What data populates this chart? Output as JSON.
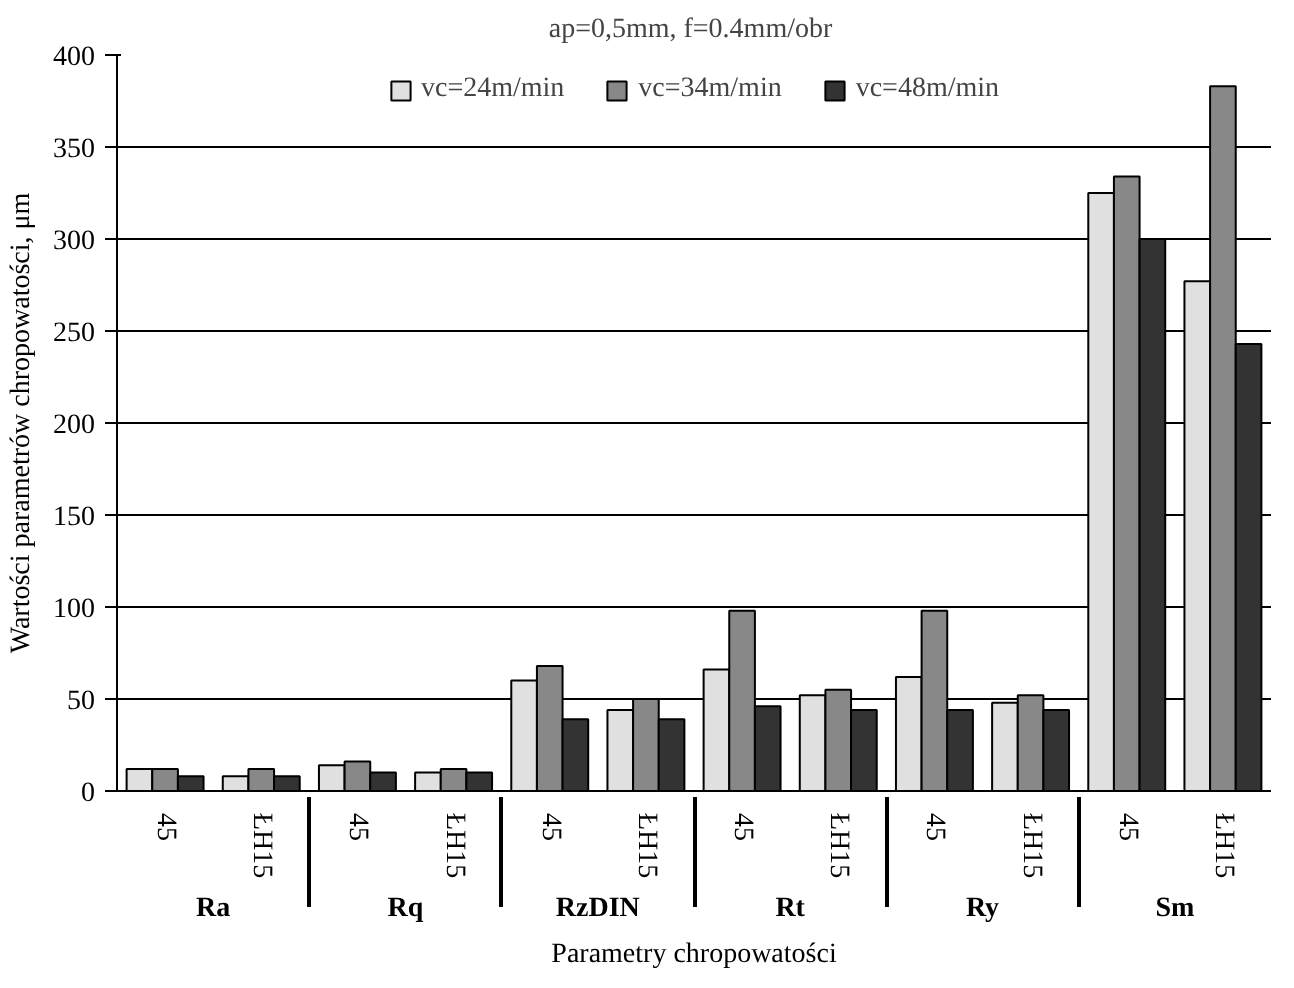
{
  "chart_data": {
    "type": "bar",
    "subtitle": "ap=0,5mm,  f=0.4mm/obr",
    "xlabel": "Parametry chropowatości",
    "ylabel": "Wartości parametrów chropowatości, μm",
    "categories": [
      "45",
      "ŁH15",
      "45",
      "ŁH15",
      "45",
      "ŁH15",
      "45",
      "ŁH15",
      "45",
      "ŁH15",
      "45",
      "ŁH15"
    ],
    "annotations": [
      "Ra",
      "Rq",
      "RzDIN",
      "Rt",
      "Ry",
      "Sm"
    ],
    "series": [
      {
        "name": "vc=24m/min",
        "color": "#e0e0e0",
        "values": [
          12,
          8,
          14,
          10,
          60,
          44,
          66,
          52,
          62,
          48,
          325,
          277
        ]
      },
      {
        "name": "vc=34m/min",
        "color": "#888888",
        "values": [
          12,
          12,
          16,
          12,
          68,
          50,
          98,
          55,
          98,
          52,
          334,
          383
        ]
      },
      {
        "name": "vc=48m/min",
        "color": "#333333",
        "values": [
          8,
          8,
          10,
          10,
          39,
          39,
          46,
          44,
          44,
          44,
          300,
          243
        ]
      }
    ],
    "ylim": [
      0,
      400
    ],
    "yticks": [
      0,
      50,
      100,
      150,
      200,
      250,
      300,
      350,
      400
    ],
    "grid": "y",
    "legend": "top"
  }
}
